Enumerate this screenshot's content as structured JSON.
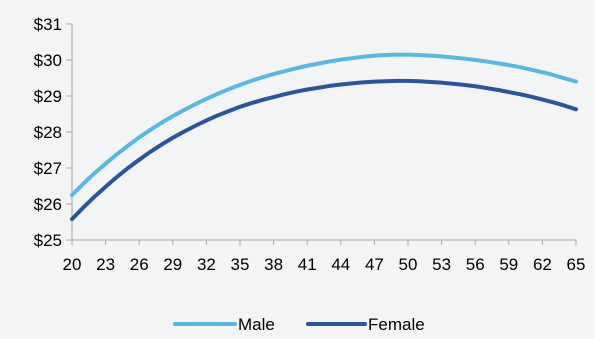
{
  "chart_data": {
    "type": "line",
    "title": "",
    "xlabel": "",
    "ylabel": "",
    "x": [
      20,
      21,
      22,
      23,
      24,
      25,
      26,
      27,
      28,
      29,
      30,
      31,
      32,
      33,
      34,
      35,
      36,
      37,
      38,
      39,
      40,
      41,
      42,
      43,
      44,
      45,
      46,
      47,
      48,
      49,
      50,
      51,
      52,
      53,
      54,
      55,
      56,
      57,
      58,
      59,
      60,
      61,
      62,
      63,
      64,
      65
    ],
    "x_tick_labels": [
      "20",
      "23",
      "26",
      "29",
      "32",
      "35",
      "38",
      "41",
      "44",
      "47",
      "50",
      "53",
      "56",
      "59",
      "62",
      "65"
    ],
    "y_tick_labels": [
      "$25",
      "$26",
      "$27",
      "$28",
      "$29",
      "$30",
      "$31"
    ],
    "ylim": [
      25,
      31
    ],
    "grid": false,
    "legend_position": "bottom",
    "series": [
      {
        "name": "Male",
        "color": "#5bb7df",
        "values": [
          26.25,
          26.56,
          26.85,
          27.12,
          27.38,
          27.62,
          27.85,
          28.06,
          28.26,
          28.44,
          28.61,
          28.77,
          28.92,
          29.06,
          29.19,
          29.31,
          29.42,
          29.52,
          29.61,
          29.69,
          29.77,
          29.84,
          29.9,
          29.96,
          30.01,
          30.05,
          30.09,
          30.12,
          30.14,
          30.15,
          30.15,
          30.14,
          30.12,
          30.1,
          30.07,
          30.04,
          30.0,
          29.96,
          29.91,
          29.86,
          29.8,
          29.73,
          29.66,
          29.58,
          29.49,
          29.4
        ]
      },
      {
        "name": "Female",
        "color": "#2a5699",
        "values": [
          25.58,
          25.9,
          26.2,
          26.48,
          26.75,
          27.0,
          27.23,
          27.45,
          27.65,
          27.84,
          28.01,
          28.17,
          28.32,
          28.46,
          28.58,
          28.7,
          28.8,
          28.89,
          28.97,
          29.05,
          29.12,
          29.18,
          29.23,
          29.28,
          29.32,
          29.35,
          29.38,
          29.4,
          29.41,
          29.42,
          29.42,
          29.41,
          29.39,
          29.37,
          29.34,
          29.31,
          29.27,
          29.22,
          29.17,
          29.11,
          29.05,
          28.98,
          28.9,
          28.82,
          28.73,
          28.63
        ]
      }
    ]
  }
}
